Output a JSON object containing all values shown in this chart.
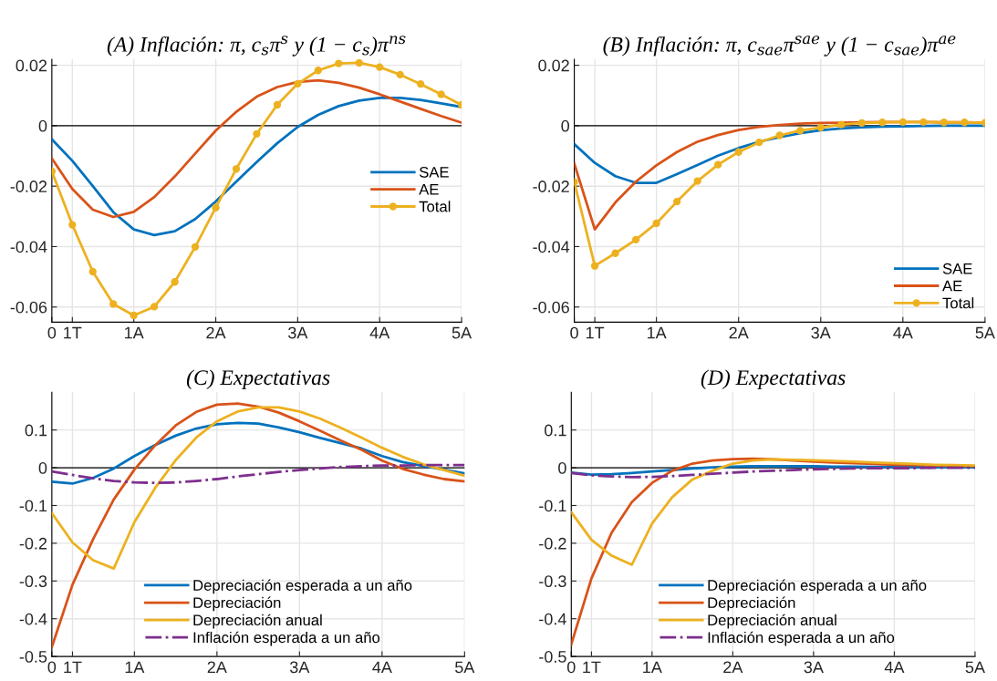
{
  "chart_data": [
    {
      "type": "line",
      "title": "(A) Inflación: π, c$_{s}$π$^{s}$ y (1 − c$_{s}$)π$^{ns}$",
      "categories": [
        "0",
        "1T",
        null,
        null,
        "1A",
        null,
        null,
        null,
        "2A",
        null,
        null,
        null,
        "3A",
        null,
        null,
        null,
        "4A",
        null,
        null,
        null,
        "5A"
      ],
      "ylim": [
        -0.065,
        0.022
      ],
      "yticks": [
        -0.06,
        -0.04,
        -0.02,
        0,
        0.02
      ],
      "grid": true,
      "legend": "right",
      "ref_lines": [
        {
          "axis": "y",
          "value": 0,
          "color": "#000000"
        }
      ],
      "series": [
        {
          "name": "SAE",
          "color": "#0072bd",
          "values": [
            -0.0045,
            -0.0116,
            -0.02,
            -0.0286,
            -0.0343,
            -0.0362,
            -0.0349,
            -0.0309,
            -0.0251,
            -0.0185,
            -0.012,
            -0.0058,
            -0.0004,
            0.0036,
            0.0065,
            0.0083,
            0.0092,
            0.0092,
            0.0085,
            0.0074,
            0.0062
          ]
        },
        {
          "name": "AE",
          "color": "#d95319",
          "values": [
            -0.0108,
            -0.0209,
            -0.0278,
            -0.0302,
            -0.0285,
            -0.0236,
            -0.0168,
            -0.0092,
            -0.0016,
            0.0046,
            0.0096,
            0.0128,
            0.0145,
            0.015,
            0.0142,
            0.0126,
            0.0104,
            0.008,
            0.0056,
            0.0032,
            0.001
          ]
        },
        {
          "name": "Total",
          "color": "#edb120",
          "marker": "circle",
          "values": [
            -0.0151,
            -0.0328,
            -0.0483,
            -0.059,
            -0.0628,
            -0.0599,
            -0.0517,
            -0.0401,
            -0.0271,
            -0.0143,
            -0.0027,
            0.0069,
            0.0139,
            0.0183,
            0.0206,
            0.0208,
            0.0194,
            0.0169,
            0.0138,
            0.0104,
            0.0069
          ]
        }
      ]
    },
    {
      "type": "line",
      "title": "(B) Inflación: π, c$_{sae}$π$^{sae}$ y (1 − c$_{sae}$)π$^{ae}$",
      "categories": [
        "0",
        "1T",
        null,
        null,
        "1A",
        null,
        null,
        null,
        "2A",
        null,
        null,
        null,
        "3A",
        null,
        null,
        null,
        "4A",
        null,
        null,
        null,
        "5A"
      ],
      "ylim": [
        -0.065,
        0.022
      ],
      "yticks": [
        -0.06,
        -0.04,
        -0.02,
        0,
        0.02
      ],
      "grid": true,
      "legend": "bottom right",
      "ref_lines": [
        {
          "axis": "y",
          "value": 0,
          "color": "#000000"
        }
      ],
      "series": [
        {
          "name": "SAE",
          "color": "#0072bd",
          "values": [
            -0.0061,
            -0.0123,
            -0.0167,
            -0.0189,
            -0.0189,
            -0.016,
            -0.013,
            -0.0099,
            -0.0074,
            -0.0053,
            -0.0038,
            -0.0025,
            -0.0015,
            -0.0009,
            -0.0005,
            -0.0003,
            -0.0002,
            -0.0001,
            0,
            0,
            0
          ]
        },
        {
          "name": "AE",
          "color": "#d95319",
          "values": [
            -0.0125,
            -0.0343,
            -0.0254,
            -0.0185,
            -0.0131,
            -0.0087,
            -0.0053,
            -0.0031,
            -0.0014,
            -0.0004,
            0.0002,
            0.0007,
            0.0009,
            0.001,
            0.0011,
            0.0012,
            0.0012,
            0.0012,
            0.0011,
            0.0011,
            0.001
          ]
        },
        {
          "name": "Total",
          "color": "#edb120",
          "marker": "circle",
          "values": [
            -0.0186,
            -0.0464,
            -0.0422,
            -0.0377,
            -0.0323,
            -0.0251,
            -0.0183,
            -0.0129,
            -0.0087,
            -0.0055,
            -0.0032,
            -0.0016,
            -0.0006,
            0.0004,
            0.0009,
            0.0011,
            0.0012,
            0.0012,
            0.0011,
            0.0011,
            0.001
          ]
        }
      ]
    },
    {
      "type": "line",
      "title": "(C) Expectativas",
      "categories": [
        "0",
        "1T",
        null,
        null,
        "1A",
        null,
        null,
        null,
        "2A",
        null,
        null,
        null,
        "3A",
        null,
        null,
        null,
        "4A",
        null,
        null,
        null,
        "5A"
      ],
      "ylim": [
        -0.5,
        0.2
      ],
      "yticks": [
        -0.5,
        -0.4,
        -0.3,
        -0.2,
        -0.1,
        0,
        0.1
      ],
      "grid": true,
      "legend": "bottom",
      "ref_lines": [
        {
          "axis": "y",
          "value": 0,
          "color": "#000000"
        }
      ],
      "series": [
        {
          "name": "Depreciación esperada a un año",
          "color": "#0072bd",
          "values": [
            -0.037,
            -0.042,
            -0.027,
            -0.002,
            0.031,
            0.06,
            0.085,
            0.104,
            0.115,
            0.119,
            0.117,
            0.107,
            0.094,
            0.079,
            0.065,
            0.051,
            0.031,
            0.015,
            0.005,
            -0.005,
            -0.015
          ]
        },
        {
          "name": "Depreciación",
          "color": "#d95319",
          "values": [
            -0.475,
            -0.31,
            -0.189,
            -0.084,
            -0.005,
            0.059,
            0.112,
            0.148,
            0.167,
            0.17,
            0.162,
            0.146,
            0.123,
            0.098,
            0.072,
            0.048,
            0.019,
            -0.003,
            -0.018,
            -0.03,
            -0.036
          ]
        },
        {
          "name": "Depreciación anual",
          "color": "#edb120",
          "values": [
            -0.12,
            -0.198,
            -0.245,
            -0.267,
            -0.144,
            -0.054,
            0.02,
            0.08,
            0.123,
            0.149,
            0.16,
            0.16,
            0.149,
            0.13,
            0.106,
            0.08,
            0.053,
            0.029,
            0.009,
            -0.006,
            -0.021
          ]
        },
        {
          "name": "Inflación esperada a un año",
          "color": "#7e2f8e",
          "line_style": "dashdot",
          "values": [
            -0.01,
            -0.019,
            -0.028,
            -0.035,
            -0.039,
            -0.04,
            -0.039,
            -0.035,
            -0.03,
            -0.023,
            -0.017,
            -0.011,
            -0.006,
            -0.002,
            0.002,
            0.004,
            0.006,
            0.006,
            0.007,
            0.007,
            0.007
          ]
        }
      ]
    },
    {
      "type": "line",
      "title": "(D) Expectativas",
      "categories": [
        "0",
        "1T",
        null,
        null,
        "1A",
        null,
        null,
        null,
        "2A",
        null,
        null,
        null,
        "3A",
        null,
        null,
        null,
        "4A",
        null,
        null,
        null,
        "5A"
      ],
      "ylim": [
        -0.5,
        0.2
      ],
      "yticks": [
        -0.5,
        -0.4,
        -0.3,
        -0.2,
        -0.1,
        0,
        0.1
      ],
      "grid": true,
      "legend": "bottom",
      "ref_lines": [
        {
          "axis": "y",
          "value": 0,
          "color": "#000000"
        }
      ],
      "series": [
        {
          "name": "Depreciación esperada a un año",
          "color": "#0072bd",
          "values": [
            -0.013,
            -0.018,
            -0.017,
            -0.014,
            -0.01,
            -0.006,
            -0.002,
            0.001,
            0.003,
            0.004,
            0.004,
            0.004,
            0.004,
            0.003,
            0.003,
            0.002,
            0.002,
            0.002,
            0.001,
            0.001,
            0.001
          ]
        },
        {
          "name": "Depreciación",
          "color": "#d95319",
          "values": [
            -0.468,
            -0.293,
            -0.172,
            -0.091,
            -0.04,
            -0.008,
            0.011,
            0.019,
            0.023,
            0.024,
            0.022,
            0.019,
            0.016,
            0.014,
            0.012,
            0.01,
            0.008,
            0.007,
            0.006,
            0.005,
            0.004
          ]
        },
        {
          "name": "Depreciación anual",
          "color": "#edb120",
          "values": [
            -0.118,
            -0.191,
            -0.233,
            -0.257,
            -0.148,
            -0.078,
            -0.031,
            -0.008,
            0.011,
            0.019,
            0.022,
            0.021,
            0.02,
            0.018,
            0.016,
            0.014,
            0.012,
            0.01,
            0.008,
            0.007,
            0.006
          ]
        },
        {
          "name": "Inflación esperada a un año",
          "color": "#7e2f8e",
          "line_style": "dashdot",
          "values": [
            -0.014,
            -0.02,
            -0.023,
            -0.025,
            -0.024,
            -0.022,
            -0.019,
            -0.016,
            -0.013,
            -0.01,
            -0.008,
            -0.006,
            -0.004,
            -0.003,
            -0.002,
            -0.001,
            -0.001,
            -0.001,
            0,
            0,
            0
          ]
        }
      ]
    }
  ]
}
